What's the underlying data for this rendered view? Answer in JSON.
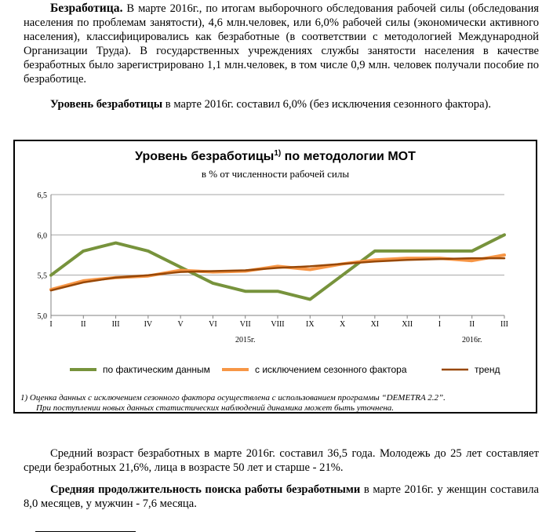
{
  "text": {
    "p1_lead": "Безработица.",
    "p1_body": " В марте 2016г., по итогам выборочного обследования рабочей силы (обследования населения по проблемам занятости), 4,6 млн.человек, или 6,0% рабочей силы (экономически активного населения), классифицировались как безработные (в соответствии с методологией Международной Организации Труда). В государственных учреждениях службы занятости населения в качестве безработных было зарегистрировано 1,1 млн.человек, в том числе 0,9 млн. человек получали пособие по безработице.",
    "p2_lead": "Уровень безработицы",
    "p2_body": " в марте 2016г. составил 6,0% (без исключения сезонного фактора).",
    "p3": "Средний возраст безработных в марте 2016г. составил 36,5 года. Молодежь до 25 лет составляет среди безработных 21,6%, лица в возрасте 50 лет и старше - 21%.",
    "p4_lead": "Средняя продолжительность поиска работы безработными",
    "p4_body": " в марте 2016г. у женщин составила 8,0 месяцев, у мужчин - 7,6 месяца.",
    "footnote_line1": "1) Оценка данных с исключением сезонного фактора осуществлена с использованием программы “DEMETRA 2.2”.",
    "footnote_line2": "При поступлении новых данных статистических наблюдений динамика может быть уточнена."
  },
  "chart_data": {
    "type": "line",
    "title": "Уровень безработицы",
    "title_sup": "1)",
    "title_suffix": " по методологии МОТ",
    "subtitle": "в % от численности рабочей силы",
    "categories": [
      "I",
      "II",
      "III",
      "IV",
      "V",
      "VI",
      "VII",
      "VIII",
      "IX",
      "X",
      "XI",
      "XII",
      "I",
      "II",
      "III"
    ],
    "year_labels": [
      {
        "text": "2015г.",
        "at_index": 6
      },
      {
        "text": "2016г.",
        "at_index": 13
      }
    ],
    "ylim": [
      5.0,
      6.5
    ],
    "yticks": [
      "5,0",
      "5,5",
      "6,0",
      "6,5"
    ],
    "ytick_values": [
      5.0,
      5.5,
      6.0,
      6.5
    ],
    "grid": true,
    "legend_position": "bottom",
    "series": [
      {
        "name": "по фактическим данным",
        "color": "#77933c",
        "values": [
          5.5,
          5.8,
          5.9,
          5.8,
          5.6,
          5.4,
          5.3,
          5.3,
          5.2,
          5.5,
          5.8,
          5.8,
          5.8,
          5.8,
          6.0
        ]
      },
      {
        "name": "с исключением сезонного фактора",
        "color": "#f79646",
        "values": [
          5.32,
          5.43,
          5.47,
          5.49,
          5.56,
          5.54,
          5.55,
          5.61,
          5.57,
          5.64,
          5.69,
          5.71,
          5.71,
          5.68,
          5.75
        ]
      },
      {
        "name": "тренд",
        "color": "#984807",
        "values": [
          5.31,
          5.41,
          5.47,
          5.5,
          5.54,
          5.55,
          5.56,
          5.59,
          5.61,
          5.64,
          5.67,
          5.69,
          5.7,
          5.71,
          5.71
        ]
      }
    ]
  }
}
